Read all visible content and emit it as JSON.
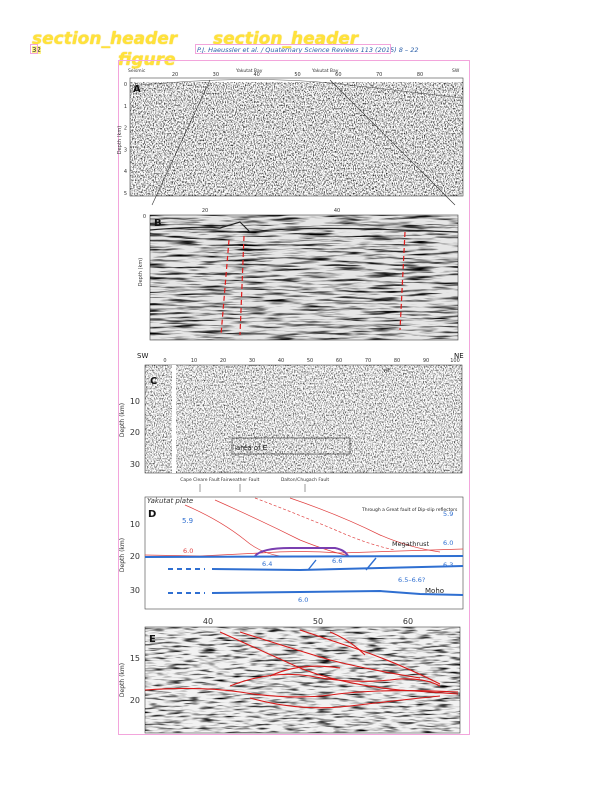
{
  "overlay": {
    "section_header_1": "section_header",
    "section_header_2": "section_header",
    "figure_label": "figure"
  },
  "header": {
    "page_number": "32",
    "running_head": "P.J. Haeussler et al. / Quaternary Science Reviews 113 (2015) 8 – 22"
  },
  "figure": {
    "panel_a": {
      "letter": "A",
      "top_labels": [
        "Seismic",
        "Yakutat Bay",
        "Yakutat Bay",
        "SW"
      ],
      "x_ticks": [
        "20",
        "30",
        "40",
        "50",
        "60",
        "70",
        "80"
      ],
      "ylabel": "Depth (km)",
      "y_ticks": [
        "0",
        "1",
        "2",
        "3",
        "4",
        "5"
      ]
    },
    "panel_b": {
      "letter": "B",
      "x_ticks": [
        "20",
        "40"
      ],
      "ylabel": "Depth (km)",
      "y_ticks": [
        "0"
      ]
    },
    "panel_c": {
      "letter": "C",
      "left_label": "SW",
      "right_label": "NE",
      "x_ticks": [
        "0",
        "10",
        "20",
        "30",
        "40",
        "50",
        "60",
        "70",
        "80",
        "90",
        "100"
      ],
      "ylabel": "Depth (km)",
      "y_ticks": [
        "10",
        "20",
        "30"
      ],
      "box_label": "area of E",
      "small_label": "v/h",
      "below_labels": [
        "Cape Cleare Fault",
        "Fairweather Fault",
        "Dalton/Chugach Fault"
      ]
    },
    "panel_d": {
      "letter": "D",
      "top_text": "Yakutat plate",
      "ylabel": "Depth (km)",
      "y_ticks": [
        "10",
        "20",
        "30"
      ],
      "velocities": [
        "5.9",
        "6.0",
        "6.4",
        "6.6",
        "6.0",
        "6.3",
        "6.5–6.6?",
        "6.0",
        "5.9"
      ],
      "annot_reflect": "Through a Great fault of Dip-slip reflectors",
      "annot_thrust": "Megathrust",
      "annot_moho": "Moho"
    },
    "panel_e": {
      "letter": "E",
      "x_ticks": [
        "40",
        "50",
        "60"
      ],
      "ylabel": "Depth (km)",
      "y_ticks": [
        "15",
        "20"
      ]
    }
  }
}
